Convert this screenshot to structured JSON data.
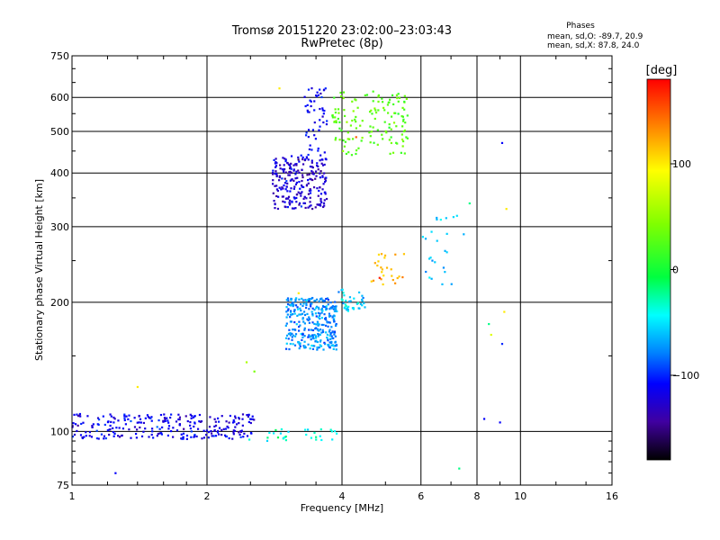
{
  "chart_data": {
    "type": "scatter",
    "title": "Tromsø 20151220 23:02:00–23:03:43",
    "subtitle": "RwPretec (8p)",
    "xlabel": "Frequency [MHz]",
    "ylabel": "Stationary phase Virtual Height [km]",
    "x_scale": "log",
    "y_scale": "log",
    "xlim": [
      1,
      16
    ],
    "ylim": [
      75,
      750
    ],
    "x_ticks": [
      1,
      2,
      4,
      6,
      8,
      10,
      16
    ],
    "x_tick_labels": [
      "1",
      "2",
      "4",
      "6",
      "8",
      "10",
      "16"
    ],
    "y_ticks": [
      75,
      100,
      200,
      300,
      400,
      500,
      600,
      750
    ],
    "y_tick_labels": [
      "75",
      "100",
      "200",
      "300",
      "400",
      "500",
      "600",
      "750"
    ],
    "grid": true,
    "stats": {
      "heading": "Phases",
      "line_o": "mean, sd,O: -89.7, 20.9",
      "line_x": "mean, sd,X:  87.8, 24.0"
    },
    "colorbar": {
      "label": "[deg]",
      "range": [
        -180,
        180
      ],
      "ticks": [
        100,
        0,
        -100
      ],
      "tick_labels": [
        "100",
        "0",
        "−100"
      ]
    },
    "clusters": [
      {
        "name": "low-E-trace-dense",
        "x_range": [
          1.0,
          2.55
        ],
        "y_range": [
          96,
          110
        ],
        "phase": -115,
        "count": 260
      },
      {
        "name": "low-trace-scatter",
        "x_range": [
          2.4,
          3.9
        ],
        "y_range": [
          95,
          102
        ],
        "phase": -40,
        "count": 30
      },
      {
        "name": "F1-cluster",
        "x_range": [
          3.0,
          3.9
        ],
        "y_range": [
          155,
          205
        ],
        "phase": -75,
        "count": 320
      },
      {
        "name": "F1-cusp",
        "x_range": [
          3.9,
          4.5
        ],
        "y_range": [
          190,
          215
        ],
        "phase": -55,
        "count": 40
      },
      {
        "name": "F2-o-cluster",
        "x_range": [
          2.8,
          3.7
        ],
        "y_range": [
          330,
          440
        ],
        "phase": -125,
        "count": 240
      },
      {
        "name": "F2-upper",
        "x_range": [
          3.3,
          3.7
        ],
        "y_range": [
          440,
          640
        ],
        "phase": -110,
        "count": 50
      },
      {
        "name": "F2-x-cluster",
        "x_range": [
          3.8,
          5.6
        ],
        "y_range": [
          440,
          620
        ],
        "phase": 30,
        "count": 140
      },
      {
        "name": "x-trace-mid",
        "x_range": [
          4.6,
          5.5
        ],
        "y_range": [
          220,
          260
        ],
        "phase": 120,
        "count": 25
      },
      {
        "name": "sparse-high",
        "x_range": [
          6.0,
          7.5
        ],
        "y_range": [
          220,
          320
        ],
        "phase": -60,
        "count": 25
      }
    ],
    "points": [
      {
        "x": 4.85,
        "y": 228,
        "phase": 170
      },
      {
        "x": 9.1,
        "y": 470,
        "phase": -110
      },
      {
        "x": 9.0,
        "y": 105,
        "phase": -110
      },
      {
        "x": 8.3,
        "y": 107,
        "phase": -110
      },
      {
        "x": 9.3,
        "y": 330,
        "phase": 100
      },
      {
        "x": 7.3,
        "y": 82,
        "phase": -20
      },
      {
        "x": 9.1,
        "y": 160,
        "phase": -100
      },
      {
        "x": 9.2,
        "y": 190,
        "phase": 100
      },
      {
        "x": 8.6,
        "y": 168,
        "phase": 80
      },
      {
        "x": 8.5,
        "y": 178,
        "phase": -20
      },
      {
        "x": 1.25,
        "y": 80,
        "phase": -110
      },
      {
        "x": 1.4,
        "y": 127,
        "phase": 100
      },
      {
        "x": 2.55,
        "y": 138,
        "phase": 40
      },
      {
        "x": 2.45,
        "y": 145,
        "phase": 60
      },
      {
        "x": 2.9,
        "y": 630,
        "phase": 100
      },
      {
        "x": 3.2,
        "y": 210,
        "phase": 100
      },
      {
        "x": 4.3,
        "y": 485,
        "phase": 150
      },
      {
        "x": 7.7,
        "y": 340,
        "phase": -20
      }
    ]
  }
}
